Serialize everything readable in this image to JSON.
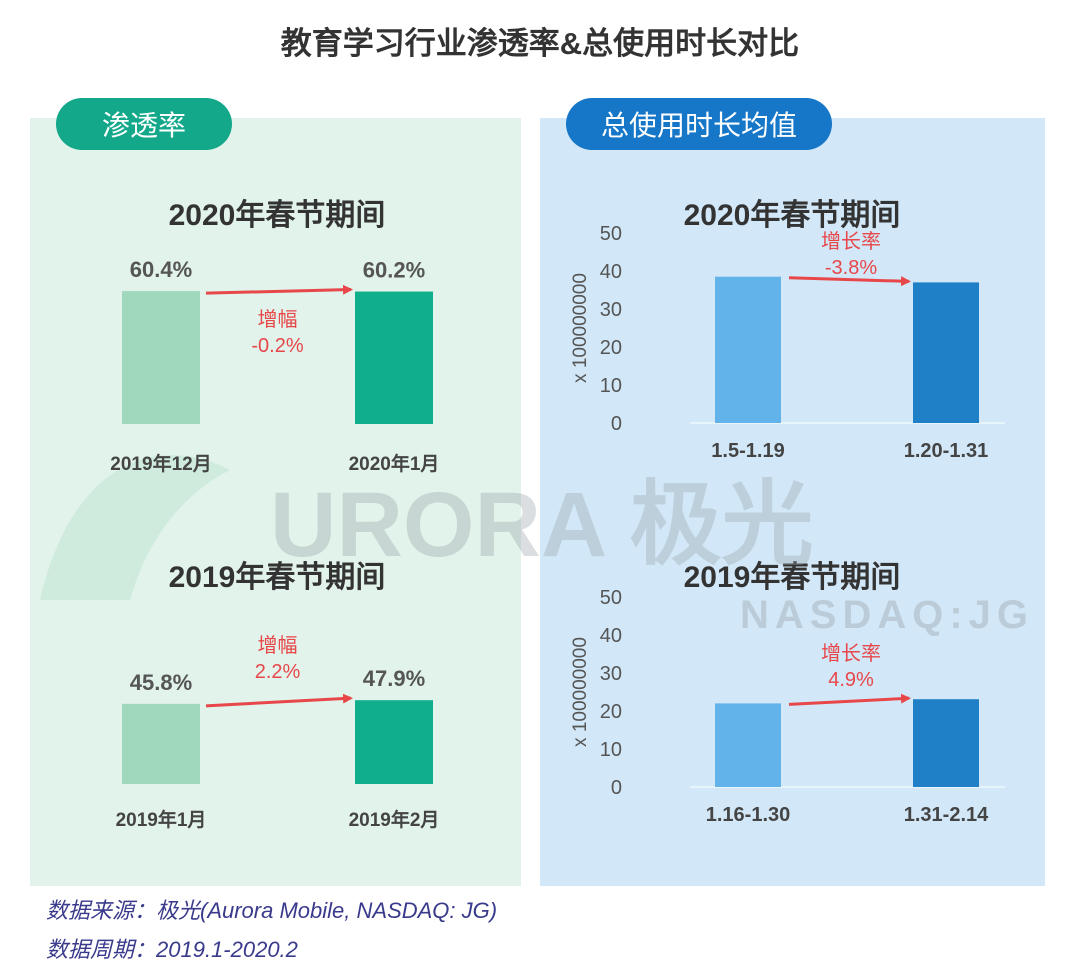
{
  "title": "教育学习行业渗透率&总使用时长对比",
  "left_panel": {
    "label": "渗透率"
  },
  "right_panel": {
    "label": "总使用时长均值"
  },
  "watermark": {
    "brand": "URORA 极光",
    "ticker": "NASDAQ:JG"
  },
  "colors": {
    "green_light": "#9fd8bd",
    "green_dark": "#0fae8c",
    "blue_light": "#62b3ea",
    "blue_dark": "#1f7fc7",
    "arrow": "#e8474a"
  },
  "chart_data": [
    {
      "type": "bar",
      "title": "2020年春节期间",
      "metric": "渗透率",
      "categories": [
        "2019年12月",
        "2020年1月"
      ],
      "values": [
        60.4,
        60.2
      ],
      "value_labels": [
        "60.4%",
        "60.2%"
      ],
      "change_label": "增幅",
      "change_value": "-0.2%"
    },
    {
      "type": "bar",
      "title": "2019年春节期间",
      "metric": "渗透率",
      "categories": [
        "2019年1月",
        "2019年2月"
      ],
      "values": [
        45.8,
        47.9
      ],
      "value_labels": [
        "45.8%",
        "47.9%"
      ],
      "change_label": "增幅",
      "change_value": "2.2%"
    },
    {
      "type": "bar",
      "title": "2020年春节期间",
      "metric": "总使用时长均值",
      "categories": [
        "1.5-1.19",
        "1.20-1.31"
      ],
      "values": [
        38.5,
        37.0
      ],
      "ylabel": "x 100000000",
      "ylim": [
        0,
        50
      ],
      "yticks": [
        "0",
        "10",
        "20",
        "30",
        "40",
        "50"
      ],
      "change_label": "增长率",
      "change_value": "-3.8%"
    },
    {
      "type": "bar",
      "title": "2019年春节期间",
      "metric": "总使用时长均值",
      "categories": [
        "1.16-1.30",
        "1.31-2.14"
      ],
      "values": [
        22.0,
        23.1
      ],
      "ylabel": "x 100000000",
      "ylim": [
        0,
        50
      ],
      "yticks": [
        "0",
        "10",
        "20",
        "30",
        "40",
        "50"
      ],
      "change_label": "增长率",
      "change_value": "4.9%"
    }
  ],
  "footer": {
    "source": "数据来源：极光(Aurora Mobile, NASDAQ: JG)",
    "period": "数据周期：2019.1-2020.2"
  }
}
